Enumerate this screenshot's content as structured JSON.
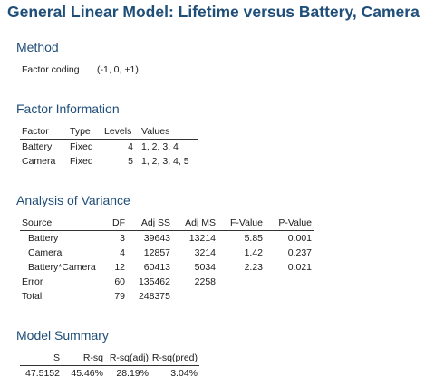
{
  "title": "General Linear Model: Lifetime versus Battery, Camera",
  "method": {
    "heading": "Method",
    "label": "Factor coding",
    "value": "(-1, 0, +1)"
  },
  "factor_info": {
    "heading": "Factor Information",
    "columns": [
      "Factor",
      "Type",
      "Levels",
      "Values"
    ],
    "rows": [
      [
        "Battery",
        "Fixed",
        "4",
        "1, 2, 3, 4"
      ],
      [
        "Camera",
        "Fixed",
        "5",
        "1, 2, 3, 4, 5"
      ]
    ]
  },
  "anova": {
    "heading": "Analysis of Variance",
    "columns": [
      "Source",
      "DF",
      "Adj SS",
      "Adj MS",
      "F-Value",
      "P-Value"
    ],
    "rows": [
      [
        "Battery",
        "3",
        "39643",
        "13214",
        "5.85",
        "0.001"
      ],
      [
        "Camera",
        "4",
        "12857",
        "3214",
        "1.42",
        "0.237"
      ],
      [
        "Battery*Camera",
        "12",
        "60413",
        "5034",
        "2.23",
        "0.021"
      ],
      [
        "Error",
        "60",
        "135462",
        "2258",
        "",
        ""
      ],
      [
        "Total",
        "79",
        "248375",
        "",
        "",
        ""
      ]
    ]
  },
  "model_summary": {
    "heading": "Model Summary",
    "columns": [
      "S",
      "R-sq",
      "R-sq(adj)",
      "R-sq(pred)"
    ],
    "rows": [
      [
        "47.5152",
        "45.46%",
        "28.19%",
        "3.04%"
      ]
    ]
  }
}
